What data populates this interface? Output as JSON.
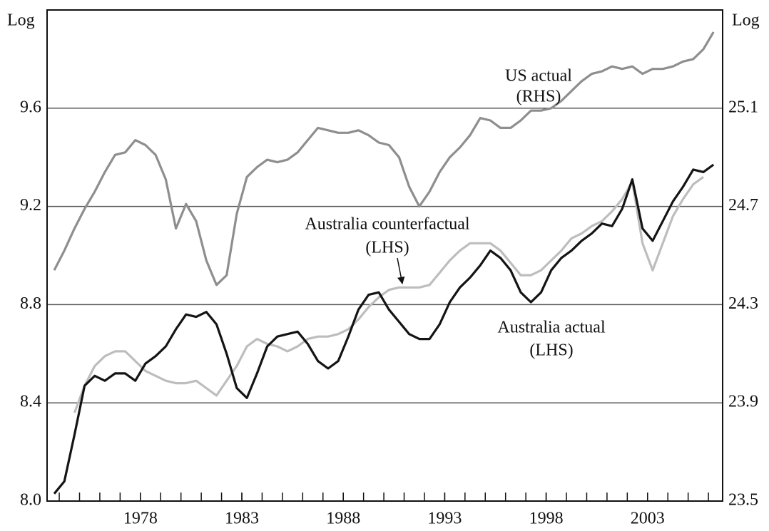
{
  "chart_data": {
    "type": "line",
    "y_label": "Log",
    "y2_label": "Log",
    "x": [
      1973.75,
      1974.25,
      1974.75,
      1975.25,
      1975.75,
      1976.25,
      1976.75,
      1977.25,
      1977.75,
      1978.25,
      1978.75,
      1979.25,
      1979.75,
      1980.25,
      1980.75,
      1981.25,
      1981.75,
      1982.25,
      1982.75,
      1983.25,
      1983.75,
      1984.25,
      1984.75,
      1985.25,
      1985.75,
      1986.25,
      1986.75,
      1987.25,
      1987.75,
      1988.25,
      1988.75,
      1989.25,
      1989.75,
      1990.25,
      1990.75,
      1991.25,
      1991.75,
      1992.25,
      1992.75,
      1993.25,
      1993.75,
      1994.25,
      1994.75,
      1995.25,
      1995.75,
      1996.25,
      1996.75,
      1997.25,
      1997.75,
      1998.25,
      1998.75,
      1999.25,
      1999.75,
      2000.25,
      2000.75,
      2001.25,
      2001.75,
      2002.25,
      2002.75,
      2003.25,
      2003.75,
      2004.25,
      2004.75,
      2005.25,
      2005.75,
      2006.25
    ],
    "series": [
      {
        "name": "US actual",
        "side": "(RHS)",
        "axis": "y2",
        "color": "#8e8e8e",
        "values": [
          24.44,
          24.52,
          24.61,
          24.69,
          24.76,
          24.84,
          24.91,
          24.92,
          24.97,
          24.95,
          24.91,
          24.81,
          24.61,
          24.71,
          24.64,
          24.48,
          24.38,
          24.42,
          24.67,
          24.82,
          24.86,
          24.89,
          24.88,
          24.89,
          24.92,
          24.97,
          25.02,
          25.01,
          25.0,
          25.0,
          25.01,
          24.99,
          24.96,
          24.95,
          24.9,
          24.78,
          24.7,
          24.76,
          24.84,
          24.9,
          24.94,
          24.99,
          25.06,
          25.05,
          25.02,
          25.02,
          25.05,
          25.09,
          25.09,
          25.1,
          25.13,
          25.17,
          25.21,
          25.24,
          25.25,
          25.27,
          25.26,
          25.27,
          25.24,
          25.26,
          25.26,
          25.27,
          25.29,
          25.3,
          25.34,
          25.41
        ]
      },
      {
        "name": "Australia counterfactual",
        "side": "(LHS)",
        "color": "#bdbdbd",
        "values": [
          null,
          null,
          8.36,
          8.47,
          8.55,
          8.59,
          8.61,
          8.61,
          8.57,
          8.53,
          8.51,
          8.49,
          8.48,
          8.48,
          8.49,
          8.46,
          8.43,
          8.49,
          8.55,
          8.63,
          8.66,
          8.64,
          8.63,
          8.61,
          8.63,
          8.66,
          8.67,
          8.67,
          8.68,
          8.7,
          8.74,
          8.79,
          8.83,
          8.86,
          8.87,
          8.87,
          8.87,
          8.88,
          8.93,
          8.98,
          9.02,
          9.05,
          9.05,
          9.05,
          9.02,
          8.97,
          8.92,
          8.92,
          8.94,
          8.98,
          9.02,
          9.07,
          9.09,
          9.12,
          9.14,
          9.18,
          9.23,
          9.3,
          9.05,
          8.94,
          9.05,
          9.16,
          9.23,
          9.29,
          9.32,
          null
        ]
      },
      {
        "name": "Australia actual",
        "side": "(LHS)",
        "color": "#141414",
        "values": [
          8.03,
          8.08,
          8.27,
          8.47,
          8.51,
          8.49,
          8.52,
          8.52,
          8.49,
          8.56,
          8.59,
          8.63,
          8.7,
          8.76,
          8.75,
          8.77,
          8.72,
          8.6,
          8.46,
          8.42,
          8.52,
          8.63,
          8.67,
          8.68,
          8.69,
          8.64,
          8.57,
          8.54,
          8.57,
          8.67,
          8.78,
          8.84,
          8.85,
          8.78,
          8.73,
          8.68,
          8.66,
          8.66,
          8.72,
          8.81,
          8.87,
          8.91,
          8.96,
          9.02,
          8.99,
          8.94,
          8.85,
          8.81,
          8.85,
          8.94,
          8.99,
          9.02,
          9.06,
          9.09,
          9.13,
          9.12,
          9.19,
          9.31,
          9.11,
          9.06,
          9.14,
          9.22,
          9.28,
          9.35,
          9.34,
          9.37
        ]
      }
    ],
    "xlim": [
      1973.4,
      2006.7
    ],
    "xticks": [
      1978,
      1983,
      1988,
      1993,
      1998,
      2003
    ],
    "ylim": [
      8.0,
      10.0
    ],
    "yticks": [
      {
        "value": 8,
        "label": "8.0"
      },
      8.4,
      8.8,
      9.2,
      9.6
    ],
    "y2lim": [
      23.5,
      25.5
    ],
    "y2ticks": [
      23.5,
      23.9,
      24.3,
      24.7,
      25.1
    ],
    "grid": true
  }
}
